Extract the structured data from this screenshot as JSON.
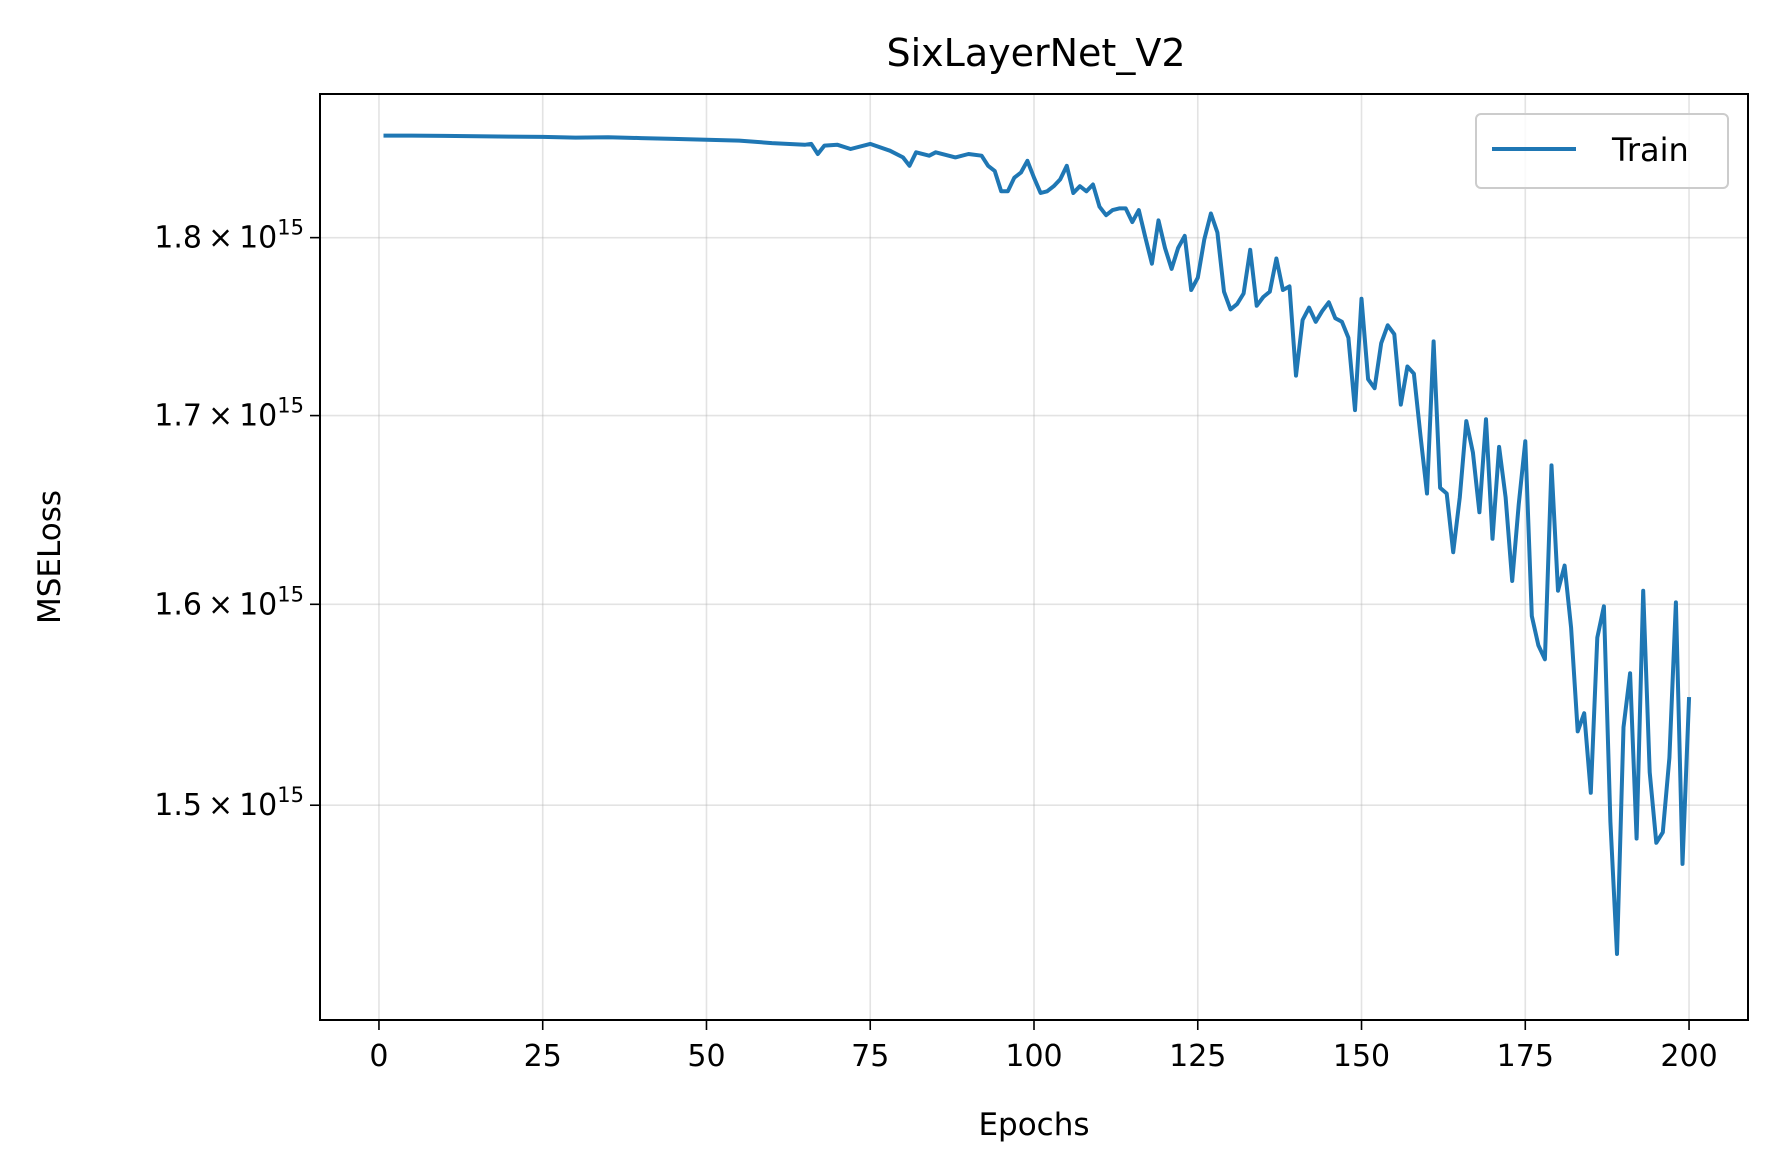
{
  "chart_data": {
    "type": "line",
    "title": "SixLayerNet_V2",
    "xlabel": "Epochs",
    "ylabel": "MSELoss",
    "yscale": "log",
    "xlim": [
      -9,
      209
    ],
    "ylim": [
      1400000000000000.0,
      1885000000000000.0
    ],
    "grid": true,
    "legend_position": "top-right",
    "x_ticks": [
      0,
      25,
      50,
      75,
      100,
      125,
      150,
      175,
      200
    ],
    "x_tick_labels": [
      "0",
      "25",
      "50",
      "75",
      "100",
      "125",
      "150",
      "175",
      "200"
    ],
    "y_ticks": [
      {
        "value": 1500000000000000.0,
        "mantissa": "1.5",
        "exponent": "15"
      },
      {
        "value": 1600000000000000.0,
        "mantissa": "1.6",
        "exponent": "15"
      },
      {
        "value": 1700000000000000.0,
        "mantissa": "1.7",
        "exponent": "15"
      },
      {
        "value": 1800000000000000.0,
        "mantissa": "1.8",
        "exponent": "15"
      }
    ],
    "line_color": "#1f77b4",
    "series": [
      {
        "name": "Train",
        "x": [
          1,
          5,
          10,
          15,
          20,
          25,
          30,
          35,
          40,
          45,
          50,
          55,
          60,
          65,
          66,
          67,
          68,
          70,
          72,
          75,
          78,
          80,
          81,
          82,
          84,
          85,
          88,
          90,
          92,
          93,
          94,
          95,
          96,
          97,
          98,
          99,
          100,
          101,
          102,
          103,
          104,
          105,
          106,
          107,
          108,
          109,
          110,
          111,
          112,
          113,
          114,
          115,
          116,
          117,
          118,
          119,
          120,
          121,
          122,
          123,
          124,
          125,
          126,
          127,
          128,
          129,
          130,
          131,
          132,
          133,
          134,
          135,
          136,
          137,
          138,
          139,
          140,
          141,
          142,
          143,
          144,
          145,
          146,
          147,
          148,
          149,
          150,
          151,
          152,
          153,
          154,
          155,
          156,
          157,
          158,
          159,
          160,
          161,
          162,
          163,
          164,
          165,
          166,
          167,
          168,
          169,
          170,
          171,
          172,
          173,
          174,
          175,
          176,
          177,
          178,
          179,
          180,
          181,
          182,
          183,
          184,
          185,
          186,
          187,
          188,
          189,
          190,
          191,
          192,
          193,
          194,
          195,
          196,
          197,
          198,
          199,
          200
        ],
        "values": [
          1860000000000000.0,
          1860000000000000.0,
          1859800000000000.0,
          1859600000000000.0,
          1859400000000000.0,
          1859200000000000.0,
          1858800000000000.0,
          1859000000000000.0,
          1858500000000000.0,
          1858000000000000.0,
          1857500000000000.0,
          1857000000000000.0,
          1855500000000000.0,
          1854500000000000.0,
          1855000000000000.0,
          1849000000000000.0,
          1854000000000000.0,
          1854500000000000.0,
          1852000000000000.0,
          1855000000000000.0,
          1851000000000000.0,
          1847000000000000.0,
          1842000000000000.0,
          1850000000000000.0,
          1848000000000000.0,
          1850000000000000.0,
          1847000000000000.0,
          1849000000000000.0,
          1848000000000000.0,
          1842000000000000.0,
          1839000000000000.0,
          1827000000000000.0,
          1827000000000000.0,
          1835000000000000.0,
          1838000000000000.0,
          1845000000000000.0,
          1835000000000000.0,
          1826000000000000.0,
          1827000000000000.0,
          1830000000000000.0,
          1834000000000000.0,
          1842000000000000.0,
          1826000000000000.0,
          1830000000000000.0,
          1827000000000000.0,
          1831000000000000.0,
          1818000000000000.0,
          1813000000000000.0,
          1816000000000000.0,
          1817000000000000.0,
          1817000000000000.0,
          1809000000000000.0,
          1816000000000000.0,
          1800000000000000.0,
          1785000000000000.0,
          1810000000000000.0,
          1794000000000000.0,
          1782000000000000.0,
          1794000000000000.0,
          1801000000000000.0,
          1770000000000000.0,
          1777000000000000.0,
          1799000000000000.0,
          1814000000000000.0,
          1803000000000000.0,
          1769000000000000.0,
          1759000000000000.0,
          1762000000000000.0,
          1768000000000000.0,
          1793000000000000.0,
          1761000000000000.0,
          1766000000000000.0,
          1769000000000000.0,
          1788000000000000.0,
          1770000000000000.0,
          1772000000000000.0,
          1722000000000000.0,
          1753000000000000.0,
          1760000000000000.0,
          1752000000000000.0,
          1758000000000000.0,
          1763000000000000.0,
          1754000000000000.0,
          1752000000000000.0,
          1743000000000000.0,
          1703000000000000.0,
          1765000000000000.0,
          1720000000000000.0,
          1715000000000000.0,
          1740000000000000.0,
          1750000000000000.0,
          1745000000000000.0,
          1706000000000000.0,
          1727000000000000.0,
          1723000000000000.0,
          1689000000000000.0,
          1658000000000000.0,
          1741000000000000.0,
          1661000000000000.0,
          1658000000000000.0,
          1627000000000000.0,
          1656000000000000.0,
          1697000000000000.0,
          1680000000000000.0,
          1648000000000000.0,
          1698000000000000.0,
          1634000000000000.0,
          1683000000000000.0,
          1656000000000000.0,
          1612000000000000.0,
          1652000000000000.0,
          1686000000000000.0,
          1594000000000000.0,
          1579000000000000.0,
          1572000000000000.0,
          1673000000000000.0,
          1607000000000000.0,
          1620000000000000.0,
          1588000000000000.0,
          1536000000000000.0,
          1545000000000000.0,
          1506000000000000.0,
          1583000000000000.0,
          1599000000000000.0,
          1492000000000000.0,
          1430000000000000.0,
          1538000000000000.0,
          1565000000000000.0,
          1484000000000000.0,
          1607000000000000.0,
          1516000000000000.0,
          1482000000000000.0,
          1487000000000000.0,
          1523000000000000.0,
          1601000000000000.0,
          1472000000000000.0,
          1552000000000000.0
        ]
      }
    ]
  }
}
